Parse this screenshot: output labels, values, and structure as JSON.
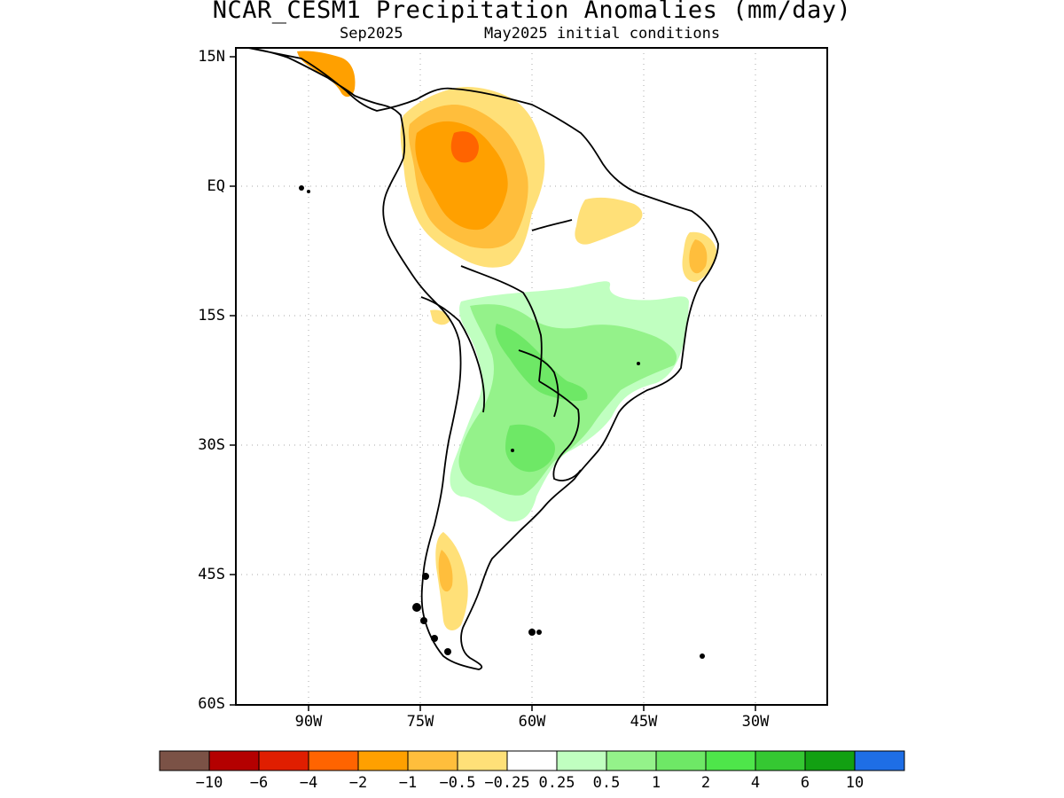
{
  "title": "NCAR_CESM1 Precipitation Anomalies (mm/day)",
  "subtitle_left": "Sep2025",
  "subtitle_right": "May2025 initial conditions",
  "lat_labels": [
    "15N",
    "EQ",
    "15S",
    "30S",
    "45S",
    "60S"
  ],
  "lon_labels": [
    "90W",
    "75W",
    "60W",
    "45W",
    "30W"
  ],
  "colorbar": {
    "colors": [
      "#7b5246",
      "#b40000",
      "#e01e00",
      "#ff6400",
      "#ffa000",
      "#ffbe3c",
      "#ffe078",
      "#ffffff",
      "#c0ffc0",
      "#94f28a",
      "#6ee866",
      "#4ee64a",
      "#35c832",
      "#12a012",
      "#1e6ee6"
    ],
    "labels": [
      "−10",
      "−6",
      "−4",
      "−2",
      "−1",
      "−0.5",
      "−0.25",
      "0.25",
      "0.5",
      "1",
      "2",
      "4",
      "6",
      "10"
    ]
  }
}
